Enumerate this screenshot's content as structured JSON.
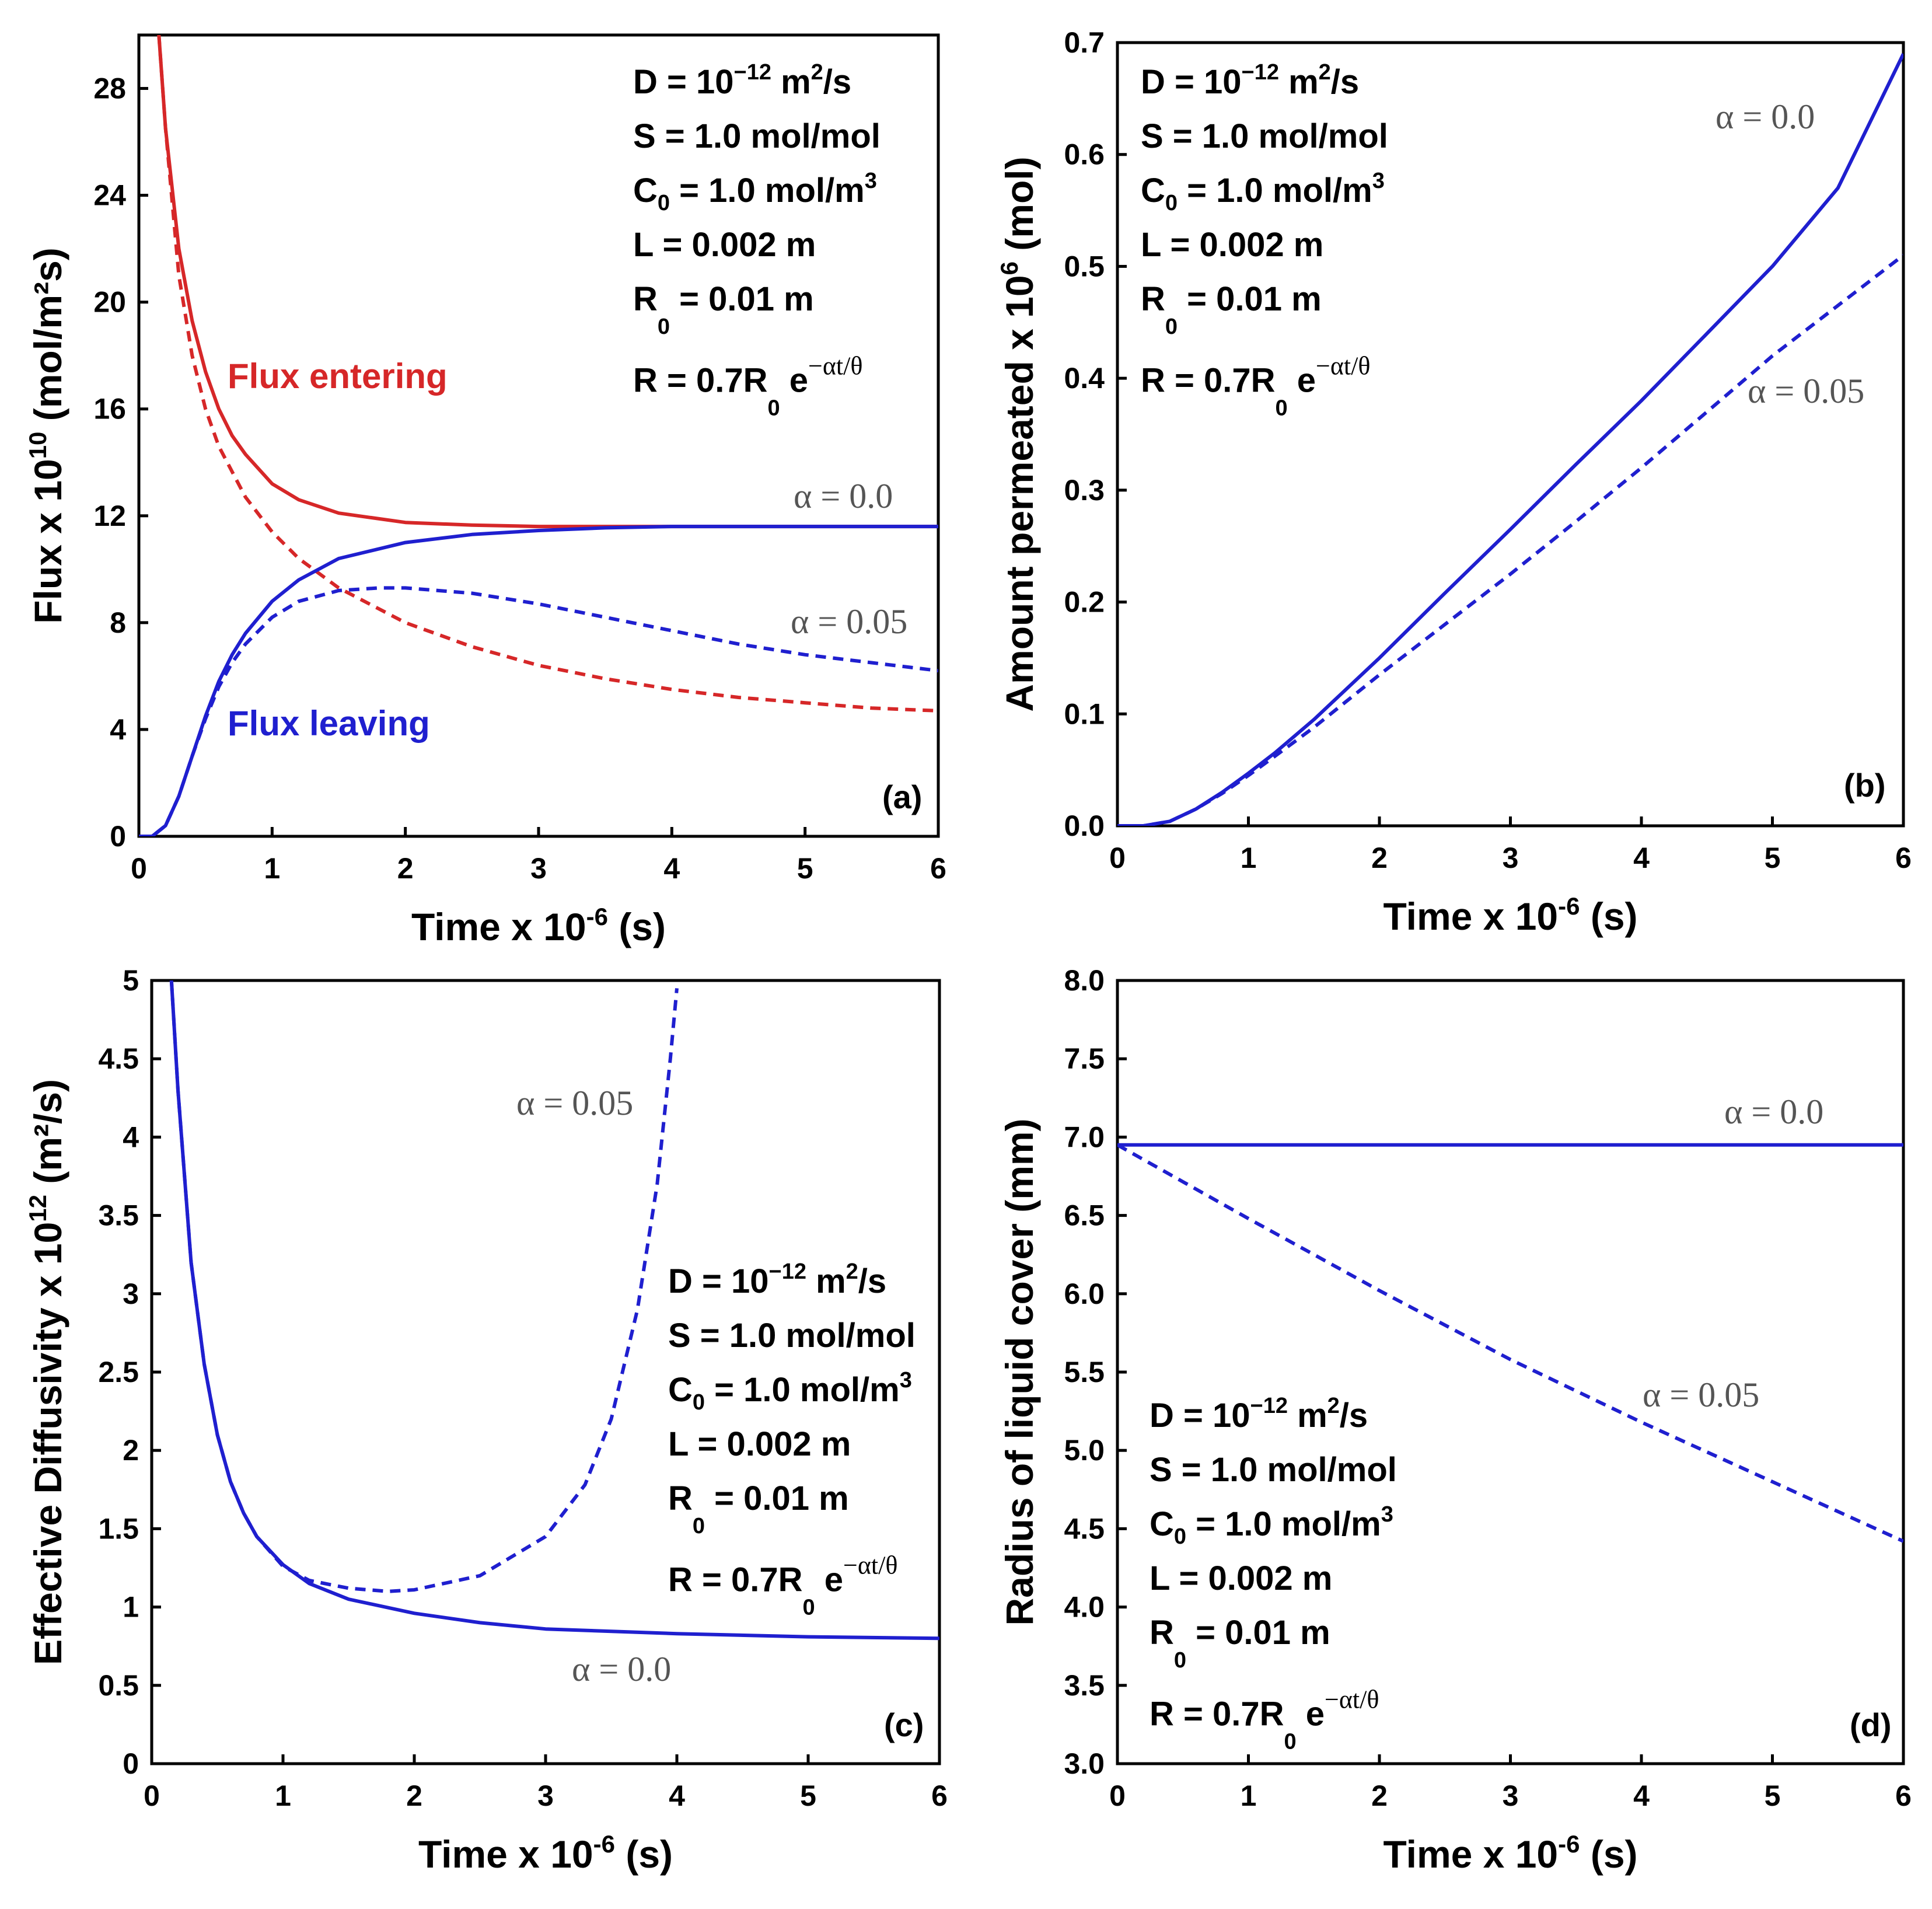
{
  "colors": {
    "red": "#d62728",
    "blue": "#1f1fcf",
    "label_gray": "#555555"
  },
  "chart_data": [
    {
      "id": "a",
      "type": "line",
      "panel_label": "(a)",
      "xlabel": "Time x 10",
      "xlabel_exp": "-6",
      "xlabel_unit": " (s)",
      "ylabel": "Flux x 10",
      "ylabel_exp": "10",
      "ylabel_unit": " (mol/m²s)",
      "xlim": [
        0,
        6
      ],
      "ylim": [
        0,
        30
      ],
      "xticks": [
        0,
        1,
        2,
        3,
        4,
        5,
        6
      ],
      "yticks": [
        0,
        4,
        8,
        12,
        16,
        20,
        24,
        28
      ],
      "ytick_labels": [
        "0",
        "4",
        "8",
        "12",
        "16",
        "20",
        "24",
        "28"
      ],
      "xtick_labels": [
        "0",
        "1",
        "2",
        "3",
        "4",
        "5",
        "6"
      ],
      "annotations": {
        "flux_entering": "Flux entering",
        "flux_leaving": "Flux leaving",
        "alpha_0": "α = 0.0",
        "alpha_005": "α = 0.05"
      },
      "series": [
        {
          "label": "Flux entering",
          "alpha": 0.0,
          "style": "solid",
          "color": "red",
          "x": [
            0.15,
            0.2,
            0.3,
            0.4,
            0.5,
            0.6,
            0.7,
            0.8,
            1.0,
            1.2,
            1.5,
            2.0,
            2.5,
            3.0,
            4.0,
            5.0,
            6.0
          ],
          "y": [
            30,
            26.5,
            22.0,
            19.3,
            17.4,
            16.0,
            15.0,
            14.3,
            13.2,
            12.6,
            12.1,
            11.75,
            11.65,
            11.6,
            11.6,
            11.6,
            11.6
          ]
        },
        {
          "label": "Flux entering",
          "alpha": 0.05,
          "style": "dashed",
          "color": "red",
          "x": [
            0.15,
            0.2,
            0.3,
            0.4,
            0.5,
            0.6,
            0.8,
            1.0,
            1.2,
            1.5,
            2.0,
            2.5,
            3.0,
            3.5,
            4.0,
            4.5,
            5.0,
            5.5,
            6.0
          ],
          "y": [
            30,
            26.5,
            21.0,
            18.0,
            16.0,
            14.6,
            12.7,
            11.4,
            10.4,
            9.3,
            8.0,
            7.1,
            6.4,
            5.9,
            5.5,
            5.2,
            5.0,
            4.8,
            4.7
          ]
        },
        {
          "label": "Flux leaving",
          "alpha": 0.0,
          "style": "solid",
          "color": "blue",
          "x": [
            0,
            0.1,
            0.2,
            0.3,
            0.4,
            0.5,
            0.6,
            0.7,
            0.8,
            1.0,
            1.2,
            1.5,
            2.0,
            2.5,
            3.0,
            3.5,
            4.0,
            5.0,
            6.0
          ],
          "y": [
            0,
            0,
            0.4,
            1.5,
            3.0,
            4.5,
            5.8,
            6.8,
            7.6,
            8.8,
            9.6,
            10.4,
            11.0,
            11.3,
            11.45,
            11.55,
            11.6,
            11.6,
            11.6
          ]
        },
        {
          "label": "Flux leaving",
          "alpha": 0.05,
          "style": "dashed",
          "color": "blue",
          "x": [
            0,
            0.1,
            0.2,
            0.3,
            0.4,
            0.5,
            0.6,
            0.7,
            0.8,
            1.0,
            1.2,
            1.5,
            1.8,
            2.0,
            2.5,
            3.0,
            3.5,
            4.0,
            4.5,
            5.0,
            5.5,
            6.0
          ],
          "y": [
            0,
            0,
            0.4,
            1.5,
            3.0,
            4.4,
            5.6,
            6.5,
            7.2,
            8.2,
            8.8,
            9.2,
            9.3,
            9.3,
            9.1,
            8.7,
            8.2,
            7.7,
            7.2,
            6.8,
            6.5,
            6.2
          ]
        }
      ]
    },
    {
      "id": "b",
      "type": "line",
      "panel_label": "(b)",
      "xlabel": "Time x 10",
      "xlabel_exp": "-6",
      "xlabel_unit": " (s)",
      "ylabel": "Amount permeated x 10",
      "ylabel_exp": "6",
      "ylabel_unit": " (mol)",
      "xlim": [
        0,
        6
      ],
      "ylim": [
        0,
        0.7
      ],
      "xticks": [
        0,
        1,
        2,
        3,
        4,
        5,
        6
      ],
      "yticks": [
        0,
        0.1,
        0.2,
        0.3,
        0.4,
        0.5,
        0.6,
        0.7
      ],
      "ytick_labels": [
        "0.0",
        "0.1",
        "0.2",
        "0.3",
        "0.4",
        "0.5",
        "0.6",
        "0.7"
      ],
      "xtick_labels": [
        "0",
        "1",
        "2",
        "3",
        "4",
        "5",
        "6"
      ],
      "annotations": {
        "alpha_0": "α = 0.0",
        "alpha_005": "α = 0.05"
      },
      "series": [
        {
          "label": "α = 0.0",
          "alpha": 0.0,
          "style": "solid",
          "color": "blue",
          "x": [
            0,
            0.2,
            0.4,
            0.6,
            0.8,
            1.0,
            1.2,
            1.5,
            2.0,
            2.5,
            3.0,
            3.5,
            4.0,
            4.5,
            5.0,
            5.5,
            6.0
          ],
          "y": [
            0,
            0,
            0.004,
            0.015,
            0.03,
            0.047,
            0.065,
            0.095,
            0.15,
            0.208,
            0.265,
            0.323,
            0.38,
            0.44,
            0.5,
            0.57,
            0.69
          ]
        },
        {
          "label": "α = 0.05",
          "alpha": 0.05,
          "style": "dashed",
          "color": "blue",
          "x": [
            0,
            0.2,
            0.4,
            0.6,
            0.8,
            1.0,
            1.2,
            1.5,
            2.0,
            2.5,
            3.0,
            3.5,
            4.0,
            4.5,
            5.0,
            5.5,
            6.0
          ],
          "y": [
            0,
            0,
            0.004,
            0.015,
            0.029,
            0.045,
            0.062,
            0.088,
            0.135,
            0.18,
            0.225,
            0.272,
            0.32,
            0.37,
            0.42,
            0.465,
            0.51
          ]
        }
      ]
    },
    {
      "id": "c",
      "type": "line",
      "panel_label": "(c)",
      "xlabel": "Time x 10",
      "xlabel_exp": "-6",
      "xlabel_unit": " (s)",
      "ylabel": "Effective Diffusivity x 10",
      "ylabel_exp": "12",
      "ylabel_unit": " (m²/s)",
      "xlim": [
        0,
        6
      ],
      "ylim": [
        0,
        5
      ],
      "xticks": [
        0,
        1,
        2,
        3,
        4,
        5,
        6
      ],
      "yticks": [
        0,
        0.5,
        1,
        1.5,
        2,
        2.5,
        3,
        3.5,
        4,
        4.5,
        5
      ],
      "ytick_labels": [
        "0",
        "0.5",
        "1",
        "1.5",
        "2",
        "2.5",
        "3",
        "3.5",
        "4",
        "4.5",
        "5"
      ],
      "xtick_labels": [
        "0",
        "1",
        "2",
        "3",
        "4",
        "5",
        "6"
      ],
      "annotations": {
        "alpha_0": "α = 0.0",
        "alpha_005": "α = 0.05"
      },
      "series": [
        {
          "label": "α = 0.0",
          "alpha": 0.0,
          "style": "solid",
          "color": "blue",
          "x": [
            0.15,
            0.2,
            0.3,
            0.4,
            0.5,
            0.6,
            0.7,
            0.8,
            1.0,
            1.2,
            1.5,
            2.0,
            2.5,
            3.0,
            4.0,
            5.0,
            6.0
          ],
          "y": [
            5.0,
            4.3,
            3.2,
            2.55,
            2.1,
            1.8,
            1.6,
            1.45,
            1.27,
            1.15,
            1.05,
            0.96,
            0.9,
            0.86,
            0.83,
            0.81,
            0.8
          ]
        },
        {
          "label": "α = 0.05",
          "alpha": 0.05,
          "style": "dashed",
          "color": "blue",
          "x": [
            0.15,
            0.2,
            0.3,
            0.4,
            0.5,
            0.6,
            0.7,
            0.8,
            1.0,
            1.2,
            1.5,
            1.8,
            2.0,
            2.5,
            3.0,
            3.3,
            3.5,
            3.7,
            3.85,
            3.95,
            4.0
          ],
          "y": [
            5.0,
            4.3,
            3.2,
            2.55,
            2.1,
            1.8,
            1.6,
            1.45,
            1.26,
            1.17,
            1.12,
            1.1,
            1.11,
            1.2,
            1.45,
            1.78,
            2.2,
            2.9,
            3.7,
            4.5,
            4.95
          ]
        }
      ]
    },
    {
      "id": "d",
      "type": "line",
      "panel_label": "(d)",
      "xlabel": "Time x 10",
      "xlabel_exp": "-6",
      "xlabel_unit": " (s)",
      "ylabel": "Radius of liquid cover (mm)",
      "ylabel_exp": "",
      "ylabel_unit": "",
      "xlim": [
        0,
        6
      ],
      "ylim": [
        3.0,
        8.0
      ],
      "xticks": [
        0,
        1,
        2,
        3,
        4,
        5,
        6
      ],
      "yticks": [
        3.0,
        3.5,
        4.0,
        4.5,
        5.0,
        5.5,
        6.0,
        6.5,
        7.0,
        7.5,
        8.0
      ],
      "ytick_labels": [
        "3.0",
        "3.5",
        "4.0",
        "4.5",
        "5.0",
        "5.5",
        "6.0",
        "6.5",
        "7.0",
        "7.5",
        "8.0"
      ],
      "xtick_labels": [
        "0",
        "1",
        "2",
        "3",
        "4",
        "5",
        "6"
      ],
      "annotations": {
        "alpha_0": "α = 0.0",
        "alpha_005": "α = 0.05"
      },
      "series": [
        {
          "label": "α = 0.0",
          "alpha": 0.0,
          "style": "solid",
          "color": "blue",
          "x": [
            0,
            6
          ],
          "y": [
            6.95,
            6.95
          ]
        },
        {
          "label": "α = 0.05",
          "alpha": 0.05,
          "style": "dashed",
          "color": "blue",
          "x": [
            0,
            1,
            2,
            3,
            4,
            5,
            6
          ],
          "y": [
            6.95,
            6.48,
            6.02,
            5.58,
            5.18,
            4.8,
            4.42
          ]
        }
      ]
    }
  ],
  "params": {
    "D_text": "D = 10",
    "D_exp": "−12",
    "D_unit": " m",
    "D_unit_exp": "2",
    "D_unit_tail": "/s",
    "S_line": "S = 1.0 mol/mol",
    "C_head": "C",
    "C_sub": "0",
    "C_tail": " = 1.0 mol/m",
    "C_exp": "3",
    "L_line": "L = 0.002 m",
    "R0_head": "R",
    "R0_sub": "0",
    "R0_tail": " = 0.01 m",
    "R_head": "R = 0.7R",
    "R_sub": "0",
    "R_tail": " e",
    "R_exp": "−αt/θ"
  }
}
